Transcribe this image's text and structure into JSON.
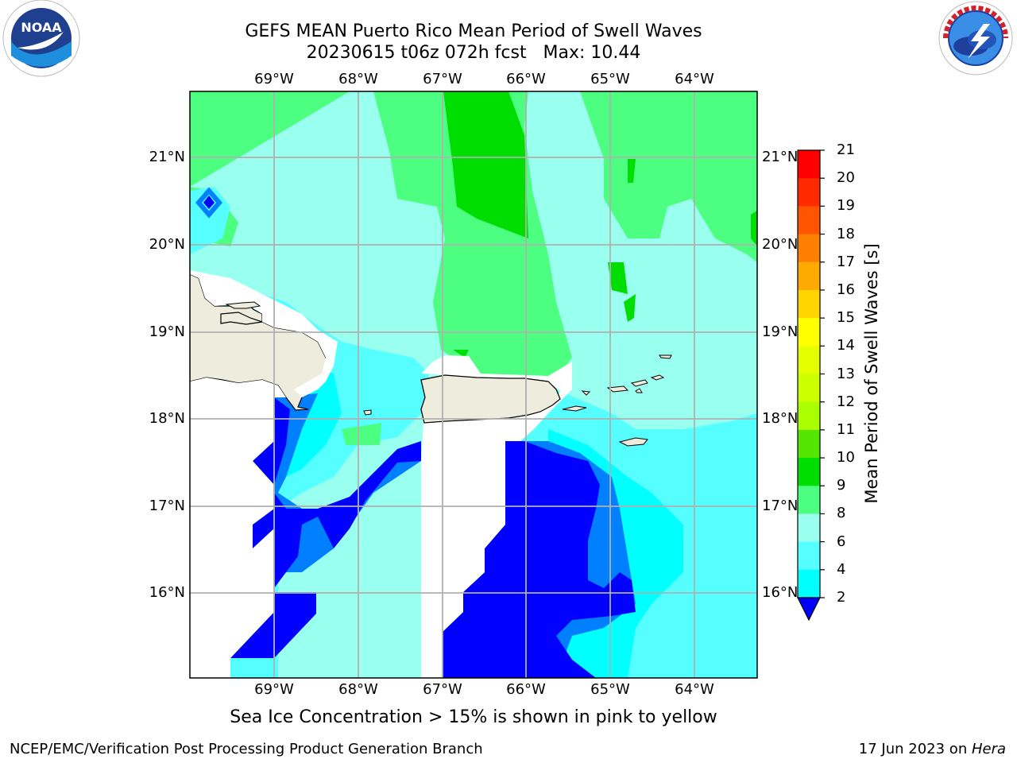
{
  "header": {
    "title_line1": "GEFS MEAN Puerto Rico Mean Period of Swell Waves",
    "title_line2": "20230615 t06z 072h fcst   Max: 10.44"
  },
  "map": {
    "lon_labels": [
      "69°W",
      "68°W",
      "67°W",
      "66°W",
      "65°W",
      "64°W"
    ],
    "lat_labels": [
      "21°N",
      "20°N",
      "19°N",
      "18°N",
      "17°N",
      "16°N"
    ],
    "colors": {
      "land": "#eeecdd",
      "no_data": "#ffffff",
      "grid": "#b0b0b0"
    },
    "labels": []
  },
  "colorbar": {
    "label": "Mean Period of Swell Waves [s]",
    "ticks": [
      "21",
      "20",
      "19",
      "18",
      "17",
      "16",
      "15",
      "14",
      "13",
      "12",
      "11",
      "10",
      "9",
      "8",
      "6",
      "4",
      "2"
    ],
    "colors": [
      "#ff0000",
      "#ff2a00",
      "#ff5500",
      "#ff8000",
      "#ffaa00",
      "#ffd400",
      "#ffff00",
      "#e6ff00",
      "#ccff00",
      "#aaff00",
      "#55e600",
      "#00dd00",
      "#4dff80",
      "#99ffee",
      "#55ffff",
      "#00ffff",
      "#0080ff",
      "#0000ff"
    ]
  },
  "footer": {
    "note": "Sea Ice Concentration > 15% is shown in pink to yellow",
    "left": "NCEP/EMC/Verification Post Processing Product Generation Branch",
    "right_date": "17 Jun 2023 on ",
    "right_host": "Hera"
  },
  "logos": {
    "noaa": "NOAA",
    "nws": "NATIONAL WEATHER SERVICE"
  }
}
